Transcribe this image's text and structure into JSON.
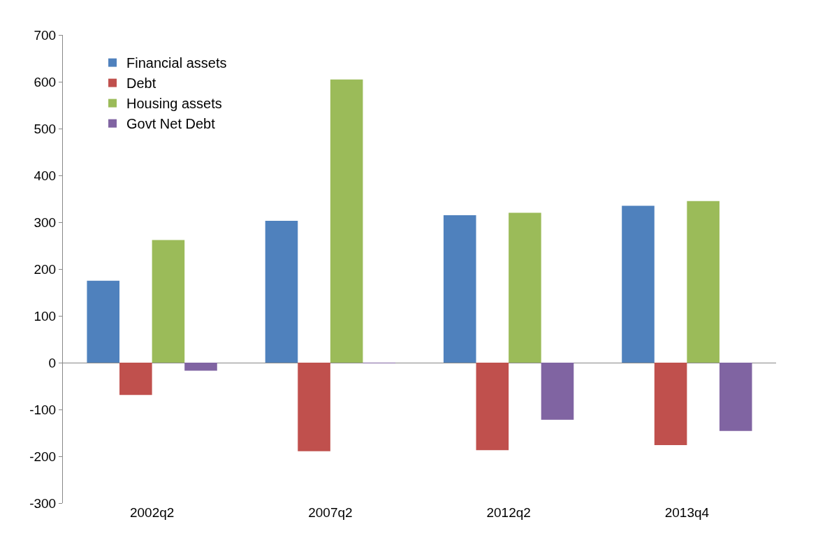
{
  "chart_data": {
    "type": "bar",
    "categories": [
      "2002q2",
      "2007q2",
      "2012q2",
      "2013q4"
    ],
    "series": [
      {
        "name": "Financial assets",
        "color": "#4f81bd",
        "values": [
          175,
          303,
          315,
          335
        ]
      },
      {
        "name": "Debt",
        "color": "#c0504d",
        "values": [
          -69,
          -189,
          -187,
          -176
        ]
      },
      {
        "name": "Housing assets",
        "color": "#9bbb59",
        "values": [
          262,
          605,
          320,
          345
        ]
      },
      {
        "name": "Govt Net Debt",
        "color": "#8064a2",
        "values": [
          -17,
          -1,
          -122,
          -146
        ]
      }
    ],
    "ylim": [
      -300,
      700
    ],
    "yticks": [
      -300,
      -200,
      -100,
      0,
      100,
      200,
      300,
      400,
      500,
      600,
      700
    ],
    "legend": "top left"
  }
}
